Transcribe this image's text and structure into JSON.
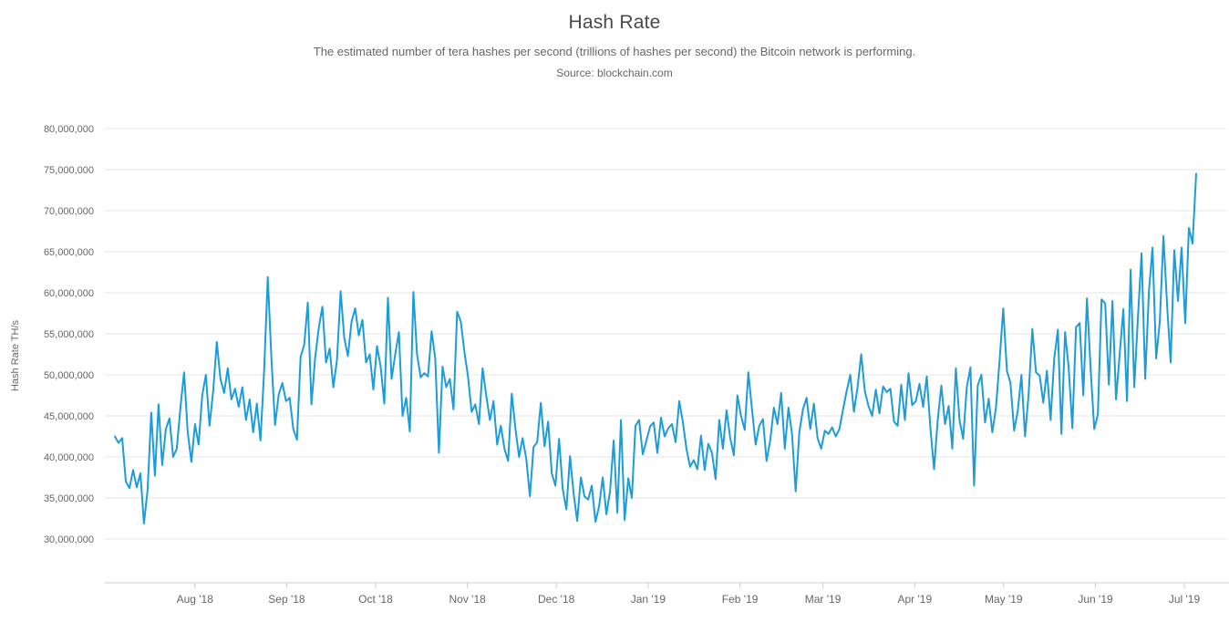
{
  "header": {
    "title": "Hash Rate",
    "subtitle": "The estimated number of tera hashes per second (trillions of hashes per second) the Bitcoin network is performing.",
    "source": "Source: blockchain.com"
  },
  "y_axis": {
    "title": "Hash Rate TH/s",
    "tick_labels": [
      "80,000,000",
      "75,000,000",
      "70,000,000",
      "65,000,000",
      "60,000,000",
      "55,000,000",
      "50,000,000",
      "45,000,000",
      "40,000,000",
      "35,000,000",
      "30,000,000"
    ],
    "tick_values": [
      80000000,
      75000000,
      70000000,
      65000000,
      60000000,
      55000000,
      50000000,
      45000000,
      40000000,
      35000000,
      30000000
    ]
  },
  "x_axis": {
    "tick_labels": [
      "Aug '18",
      "Sep '18",
      "Oct '18",
      "Nov '18",
      "Dec '18",
      "Jan '19",
      "Feb '19",
      "Mar '19",
      "Apr '19",
      "May '19",
      "Jun '19",
      "Jul '19"
    ]
  },
  "colors": {
    "line": "#1d9cda",
    "grid": "#e6e6e6",
    "axis": "#c9cdd2",
    "tick": "#c9cdd2",
    "label": "#666666",
    "title": "#4a4a4a"
  },
  "chart_data": {
    "type": "line",
    "title": "Hash Rate",
    "ylabel": "Hash Rate TH/s",
    "unit": "TH/s",
    "x_start": "2018-07-05",
    "x_end": "2019-07-05",
    "note": "values are millions of TH/s, evenly spaced in time between x_start and x_end",
    "ylim": [
      24500000,
      82500000
    ],
    "grid": true,
    "legend": "none",
    "values_millions": [
      42.5,
      41.7,
      42.3,
      37.0,
      36.2,
      38.4,
      36.3,
      38.0,
      31.9,
      36.0,
      45.4,
      37.7,
      46.4,
      39.0,
      43.4,
      44.7,
      40.0,
      41.0,
      46.0,
      50.3,
      43.0,
      39.4,
      44.0,
      41.5,
      47.5,
      50.0,
      43.8,
      48.0,
      54.0,
      49.5,
      47.8,
      50.8,
      47.0,
      48.3,
      46.1,
      48.5,
      44.5,
      47.0,
      43.0,
      46.5,
      42.0,
      50.5,
      61.9,
      52.0,
      43.9,
      47.6,
      49.0,
      46.8,
      47.2,
      43.4,
      42.1,
      52.2,
      53.6,
      58.8,
      46.4,
      52.0,
      55.7,
      58.3,
      51.5,
      53.2,
      48.5,
      51.8,
      60.2,
      54.5,
      52.3,
      56.5,
      58.1,
      54.8,
      56.7,
      51.5,
      52.5,
      48.2,
      53.5,
      51.0,
      46.5,
      59.4,
      49.5,
      52.5,
      55.2,
      45.0,
      47.2,
      43.1,
      60.1,
      52.5,
      49.7,
      50.2,
      49.8,
      55.3,
      52.0,
      40.5,
      51.0,
      48.5,
      49.5,
      45.8,
      57.7,
      56.5,
      52.8,
      49.8,
      45.5,
      46.4,
      44.0,
      50.8,
      47.5,
      44.5,
      46.8,
      41.5,
      43.8,
      41.0,
      39.5,
      47.7,
      43.5,
      40.0,
      42.3,
      39.8,
      35.2,
      41.2,
      41.8,
      46.6,
      41.3,
      44.3,
      38.0,
      36.5,
      42.2,
      36.1,
      33.6,
      40.1,
      35.5,
      32.2,
      37.5,
      35.2,
      34.8,
      36.5,
      32.1,
      34.0,
      37.5,
      33.0,
      35.8,
      42.0,
      33.2,
      44.5,
      32.3,
      37.4,
      35.0,
      43.8,
      44.5,
      40.3,
      42.0,
      43.7,
      44.2,
      40.5,
      44.8,
      42.5,
      43.5,
      44.0,
      41.8,
      46.8,
      44.3,
      41.0,
      38.8,
      39.6,
      38.5,
      42.6,
      38.4,
      41.6,
      40.5,
      37.3,
      44.5,
      41.0,
      45.7,
      42.3,
      40.2,
      47.5,
      45.0,
      43.3,
      50.3,
      45.8,
      41.5,
      43.8,
      44.6,
      39.5,
      42.0,
      46.0,
      44.0,
      47.8,
      41.0,
      46.0,
      42.8,
      35.8,
      43.0,
      45.8,
      47.2,
      43.4,
      46.5,
      42.3,
      41.0,
      43.2,
      42.8,
      43.6,
      42.5,
      43.4,
      45.8,
      48.0,
      50.0,
      45.5,
      48.5,
      52.5,
      48.0,
      46.2,
      45.0,
      48.2,
      45.3,
      48.6,
      47.9,
      48.3,
      44.3,
      43.8,
      48.8,
      44.5,
      50.2,
      46.3,
      46.8,
      48.9,
      46.1,
      49.8,
      43.5,
      38.5,
      44.5,
      48.7,
      44.0,
      46.2,
      41.0,
      50.8,
      44.5,
      42.2,
      48.5,
      50.9,
      36.5,
      48.7,
      50.0,
      44.2,
      47.1,
      43.0,
      46.0,
      51.8,
      58.1,
      50.5,
      49.0,
      43.2,
      45.6,
      50.0,
      42.5,
      47.8,
      55.6,
      50.3,
      49.9,
      46.6,
      50.5,
      44.5,
      52.0,
      55.5,
      42.8,
      55.2,
      50.8,
      43.5,
      55.8,
      56.3,
      47.5,
      59.3,
      50.8,
      43.4,
      45.2,
      59.2,
      58.7,
      48.8,
      59.0,
      47.0,
      52.5,
      58.0,
      46.8,
      62.8,
      48.5,
      57.0,
      64.8,
      49.5,
      60.0,
      65.5,
      52.0,
      56.5,
      66.9,
      58.5,
      51.5,
      65.2,
      59.0,
      65.5,
      56.3,
      67.9,
      66.0,
      74.5
    ]
  }
}
